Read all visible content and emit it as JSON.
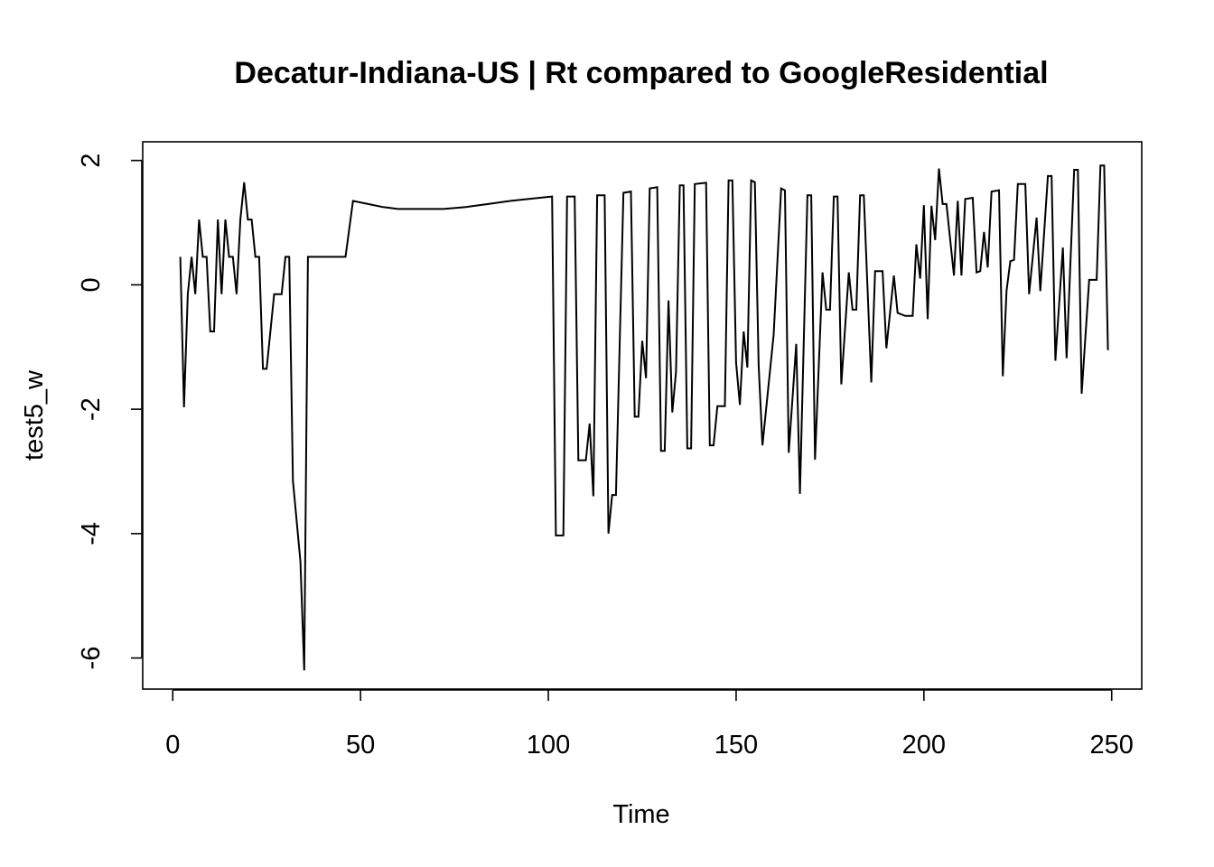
{
  "chart_data": {
    "type": "line",
    "title": "Decatur-Indiana-US | Rt compared to GoogleResidential",
    "xlabel": "Time",
    "ylabel": "test5_w",
    "xlim": [
      -8,
      258
    ],
    "ylim": [
      -6.5,
      2.3
    ],
    "grid": false,
    "x_ticks": [
      0,
      50,
      100,
      150,
      200,
      250
    ],
    "y_ticks": [
      -6,
      -4,
      -2,
      0,
      2
    ],
    "series": [
      {
        "values": [
          [
            2,
            0.45
          ],
          [
            3,
            -1.97
          ],
          [
            4,
            -0.15
          ],
          [
            5,
            0.45
          ],
          [
            6,
            -0.15
          ],
          [
            7,
            1.05
          ],
          [
            8,
            0.45
          ],
          [
            9,
            0.45
          ],
          [
            10,
            -0.75
          ],
          [
            11,
            -0.75
          ],
          [
            12,
            1.05
          ],
          [
            13,
            -0.15
          ],
          [
            14,
            1.05
          ],
          [
            15,
            0.45
          ],
          [
            16,
            0.45
          ],
          [
            17,
            -0.15
          ],
          [
            18,
            1.05
          ],
          [
            19,
            1.65
          ],
          [
            20,
            1.05
          ],
          [
            21,
            1.05
          ],
          [
            22,
            0.45
          ],
          [
            23,
            0.45
          ],
          [
            24,
            -1.35
          ],
          [
            25,
            -1.35
          ],
          [
            27,
            -0.15
          ],
          [
            29,
            -0.15
          ],
          [
            30,
            0.45
          ],
          [
            31,
            0.45
          ],
          [
            32,
            -3.15
          ],
          [
            34,
            -4.45
          ],
          [
            35,
            -6.2
          ],
          [
            36,
            0.45
          ],
          [
            38,
            0.45
          ],
          [
            40,
            0.45
          ],
          [
            42,
            0.45
          ],
          [
            44,
            0.45
          ],
          [
            46,
            0.45
          ],
          [
            48,
            1.35
          ],
          [
            52,
            1.3
          ],
          [
            56,
            1.25
          ],
          [
            60,
            1.22
          ],
          [
            66,
            1.22
          ],
          [
            72,
            1.22
          ],
          [
            78,
            1.25
          ],
          [
            84,
            1.3
          ],
          [
            90,
            1.35
          ],
          [
            96,
            1.39
          ],
          [
            101,
            1.42
          ],
          [
            102,
            -4.03
          ],
          [
            104,
            -4.03
          ],
          [
            105,
            1.42
          ],
          [
            107,
            1.42
          ],
          [
            108,
            -2.82
          ],
          [
            110,
            -2.82
          ],
          [
            111,
            -2.23
          ],
          [
            112,
            -3.4
          ],
          [
            113,
            1.44
          ],
          [
            115,
            1.44
          ],
          [
            116,
            -4.0
          ],
          [
            117,
            -3.38
          ],
          [
            118,
            -3.38
          ],
          [
            120,
            1.48
          ],
          [
            122,
            1.5
          ],
          [
            123,
            -2.12
          ],
          [
            124,
            -2.12
          ],
          [
            125,
            -0.9
          ],
          [
            126,
            -1.5
          ],
          [
            127,
            1.55
          ],
          [
            129,
            1.57
          ],
          [
            130,
            -2.67
          ],
          [
            131,
            -2.67
          ],
          [
            132,
            -0.25
          ],
          [
            133,
            -2.05
          ],
          [
            134,
            -1.4
          ],
          [
            135,
            1.6
          ],
          [
            136,
            1.6
          ],
          [
            137,
            -2.63
          ],
          [
            138,
            -2.63
          ],
          [
            139,
            1.62
          ],
          [
            142,
            1.64
          ],
          [
            143,
            -2.58
          ],
          [
            144,
            -2.58
          ],
          [
            145,
            -1.95
          ],
          [
            147,
            -1.95
          ],
          [
            148,
            1.68
          ],
          [
            149,
            1.68
          ],
          [
            150,
            -1.25
          ],
          [
            151,
            -1.93
          ],
          [
            152,
            -0.75
          ],
          [
            153,
            -1.33
          ],
          [
            154,
            1.68
          ],
          [
            155,
            1.65
          ],
          [
            156,
            -1.3
          ],
          [
            157,
            -2.58
          ],
          [
            160,
            -0.8
          ],
          [
            162,
            1.55
          ],
          [
            163,
            1.52
          ],
          [
            164,
            -2.7
          ],
          [
            166,
            -0.95
          ],
          [
            167,
            -3.36
          ],
          [
            169,
            1.44
          ],
          [
            170,
            1.44
          ],
          [
            171,
            -2.81
          ],
          [
            173,
            0.2
          ],
          [
            174,
            -0.4
          ],
          [
            175,
            -0.4
          ],
          [
            176,
            1.42
          ],
          [
            177,
            1.42
          ],
          [
            178,
            -1.6
          ],
          [
            180,
            0.2
          ],
          [
            181,
            -0.4
          ],
          [
            182,
            -0.4
          ],
          [
            183,
            1.44
          ],
          [
            184,
            1.44
          ],
          [
            186,
            -1.57
          ],
          [
            187,
            0.22
          ],
          [
            189,
            0.22
          ],
          [
            190,
            -1.02
          ],
          [
            192,
            0.15
          ],
          [
            193,
            -0.45
          ],
          [
            195,
            -0.5
          ],
          [
            197,
            -0.5
          ],
          [
            198,
            0.65
          ],
          [
            199,
            0.1
          ],
          [
            200,
            1.28
          ],
          [
            201,
            -0.55
          ],
          [
            202,
            1.27
          ],
          [
            203,
            0.72
          ],
          [
            204,
            1.87
          ],
          [
            205,
            1.3
          ],
          [
            206,
            1.3
          ],
          [
            208,
            0.15
          ],
          [
            209,
            1.35
          ],
          [
            210,
            0.15
          ],
          [
            211,
            1.38
          ],
          [
            213,
            1.4
          ],
          [
            214,
            0.2
          ],
          [
            215,
            0.22
          ],
          [
            216,
            0.85
          ],
          [
            217,
            0.28
          ],
          [
            218,
            1.5
          ],
          [
            220,
            1.52
          ],
          [
            221,
            -1.47
          ],
          [
            222,
            -0.1
          ],
          [
            223,
            0.38
          ],
          [
            224,
            0.4
          ],
          [
            225,
            1.62
          ],
          [
            227,
            1.62
          ],
          [
            228,
            -0.15
          ],
          [
            230,
            1.08
          ],
          [
            231,
            -0.1
          ],
          [
            233,
            1.75
          ],
          [
            234,
            1.75
          ],
          [
            235,
            -1.22
          ],
          [
            237,
            0.6
          ],
          [
            238,
            -1.18
          ],
          [
            240,
            1.85
          ],
          [
            241,
            1.85
          ],
          [
            242,
            -1.75
          ],
          [
            244,
            0.08
          ],
          [
            246,
            0.08
          ],
          [
            247,
            1.92
          ],
          [
            248,
            1.92
          ],
          [
            249,
            -1.05
          ]
        ]
      }
    ]
  }
}
